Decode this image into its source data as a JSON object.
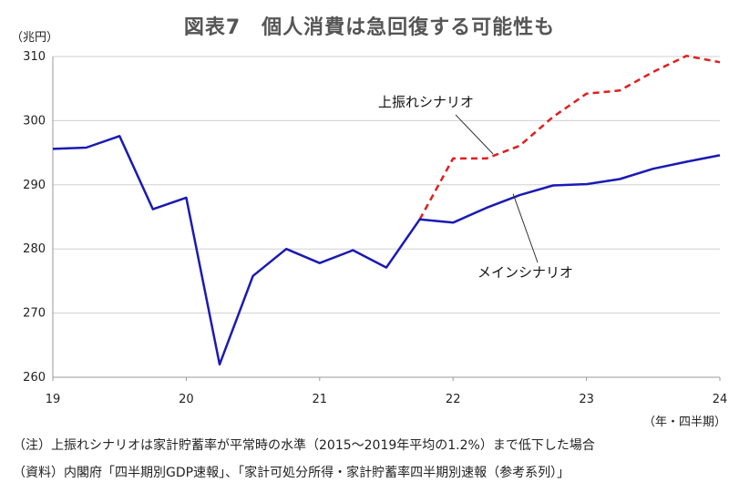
{
  "chart_data": {
    "type": "line",
    "title": "図表7　個人消費は急回復する可能性も",
    "ylabel": "（兆円）",
    "xunit": "（年・四半期）",
    "ylim": [
      260,
      310
    ],
    "yticks": [
      260,
      270,
      280,
      290,
      300,
      310
    ],
    "xlim": [
      19,
      24
    ],
    "xticks": [
      19,
      20,
      21,
      22,
      23,
      24
    ],
    "grid": true,
    "x": [
      19.0,
      19.25,
      19.5,
      19.75,
      20.0,
      20.25,
      20.5,
      20.75,
      21.0,
      21.25,
      21.5,
      21.75,
      22.0,
      22.25,
      22.5,
      22.75,
      23.0,
      23.25,
      23.5,
      23.75,
      24.0
    ],
    "series": [
      {
        "name": "メインシナリオ",
        "color": "#1a1ab4",
        "dashed": false,
        "values": [
          295.6,
          295.8,
          297.6,
          286.2,
          288.0,
          262.0,
          275.8,
          280.0,
          277.8,
          279.8,
          277.1,
          284.6,
          284.1,
          286.4,
          288.4,
          289.9,
          290.1,
          290.9,
          292.5,
          293.6,
          294.6
        ]
      },
      {
        "name": "上振れシナリオ",
        "color": "#e01e1e",
        "dashed": true,
        "values": [
          null,
          null,
          null,
          null,
          null,
          null,
          null,
          null,
          null,
          null,
          null,
          284.6,
          294.1,
          294.1,
          296.1,
          300.6,
          304.2,
          304.7,
          307.6,
          310.1,
          309.1
        ]
      }
    ],
    "annotations": [
      {
        "text": "上振れシナリオ",
        "series": 1
      },
      {
        "text": "メインシナリオ",
        "series": 0
      }
    ]
  },
  "notes": [
    "（注）上振れシナリオは家計貯蓄率が平常時の水準（2015～2019年平均の1.2%）まで低下した場合",
    "（資料）内閣府「四半期別GDP速報」、「家計可処分所得・家計貯蓄率四半期別速報（参考系列）」"
  ]
}
